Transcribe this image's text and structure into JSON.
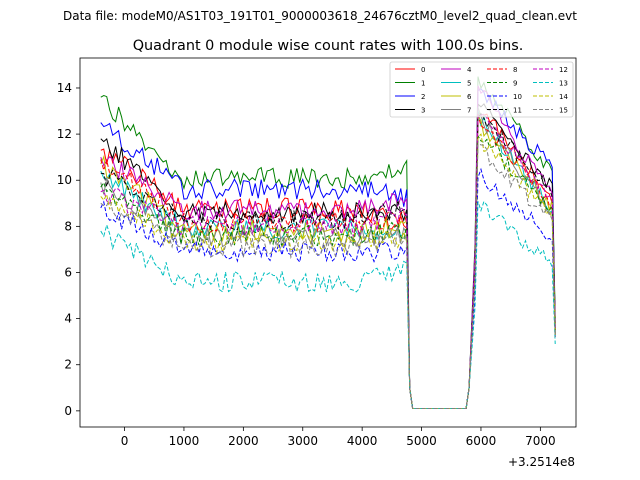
{
  "chart_data": {
    "type": "line",
    "suptitle": "Data file: modeM0/AS1T03_191T01_9000003618_24676cztM0_level2_quad_clean.evt",
    "title": "Quadrant 0 module wise count rates with 100.0s bins.",
    "xlabel": "",
    "ylabel": "",
    "offset_label": "+3.2514e8",
    "xlim": [
      -750,
      7600
    ],
    "ylim": [
      -0.7,
      15.3
    ],
    "xticks": [
      0,
      1000,
      2000,
      3000,
      4000,
      5000,
      6000,
      7000
    ],
    "yticks": [
      0,
      2,
      4,
      6,
      8,
      10,
      12,
      14
    ],
    "grid": false,
    "legend": {
      "placement": "top-right",
      "columns": 4
    },
    "gap": {
      "start": 4750,
      "end": 5900,
      "points": [
        [
          4800,
          1.0
        ],
        [
          4850,
          0.1
        ],
        [
          5750,
          0.1
        ],
        [
          5800,
          1.0
        ]
      ]
    },
    "recovery_x": [
      5900,
      5950,
      6000,
      6050,
      6100,
      6150,
      6200,
      6250,
      6300,
      6350,
      6400,
      6450,
      6500,
      6550,
      6600,
      6650,
      6700,
      6750,
      6800,
      6850,
      6900,
      6950,
      7000,
      7050,
      7100,
      7150,
      7200,
      7250
    ],
    "series": [
      {
        "name": "0",
        "color": "#ff0000",
        "style": "solid",
        "start": 11.3,
        "base": 8.8,
        "pre_end": 8.0,
        "peak": 13.2,
        "end": 9.2,
        "final": 3.5
      },
      {
        "name": "1",
        "color": "#008000",
        "style": "solid",
        "start": 13.6,
        "base": 10.1,
        "pre_end": 10.4,
        "peak": 14.5,
        "end": 10.3,
        "final": 4.0
      },
      {
        "name": "2",
        "color": "#0000ff",
        "style": "solid",
        "start": 12.5,
        "base": 9.6,
        "pre_end": 9.2,
        "peak": 13.9,
        "end": 10.6,
        "final": 3.2
      },
      {
        "name": "3",
        "color": "#000000",
        "style": "solid",
        "start": 11.8,
        "base": 8.6,
        "pre_end": 8.7,
        "peak": 13.3,
        "end": 9.6,
        "final": 3.8
      },
      {
        "name": "4",
        "color": "#bf00bf",
        "style": "solid",
        "start": 11.0,
        "base": 8.7,
        "pre_end": 9.2,
        "peak": 14.1,
        "end": 9.3,
        "final": 3.6
      },
      {
        "name": "5",
        "color": "#00bfbf",
        "style": "solid",
        "start": 10.4,
        "base": 7.9,
        "pre_end": 7.9,
        "peak": 12.8,
        "end": 8.7,
        "final": 3.4
      },
      {
        "name": "6",
        "color": "#bfbf00",
        "style": "solid",
        "start": 10.7,
        "base": 7.8,
        "pre_end": 8.1,
        "peak": 12.5,
        "end": 8.9,
        "final": 3.3
      },
      {
        "name": "7",
        "color": "#808080",
        "style": "solid",
        "start": 9.9,
        "base": 7.5,
        "pre_end": 7.6,
        "peak": 12.9,
        "end": 8.5,
        "final": 3.3
      },
      {
        "name": "8",
        "color": "#ff0000",
        "style": "dashed",
        "start": 10.9,
        "base": 8.2,
        "pre_end": 8.4,
        "peak": 12.6,
        "end": 9.0,
        "final": 3.5
      },
      {
        "name": "9",
        "color": "#008000",
        "style": "dashed",
        "start": 9.7,
        "base": 7.6,
        "pre_end": 7.8,
        "peak": 12.1,
        "end": 8.6,
        "final": 3.4
      },
      {
        "name": "10",
        "color": "#0000ff",
        "style": "dashed",
        "start": 8.8,
        "base": 6.9,
        "pre_end": 6.9,
        "peak": 10.3,
        "end": 7.5,
        "final": 3.2
      },
      {
        "name": "11",
        "color": "#000000",
        "style": "dashed",
        "start": 10.3,
        "base": 8.3,
        "pre_end": 8.9,
        "peak": 12.9,
        "end": 9.5,
        "final": 3.7
      },
      {
        "name": "12",
        "color": "#bf00bf",
        "style": "dashed",
        "start": 9.5,
        "base": 8.0,
        "pre_end": 8.6,
        "peak": 13.0,
        "end": 9.2,
        "final": 3.6
      },
      {
        "name": "13",
        "color": "#00bfbf",
        "style": "dashed",
        "start": 7.8,
        "base": 5.6,
        "pre_end": 6.1,
        "peak": 9.0,
        "end": 6.3,
        "final": 2.9
      },
      {
        "name": "14",
        "color": "#bfbf00",
        "style": "dashed",
        "start": 9.3,
        "base": 7.3,
        "pre_end": 7.4,
        "peak": 11.8,
        "end": 8.5,
        "final": 3.3
      },
      {
        "name": "15",
        "color": "#808080",
        "style": "dashed",
        "start": 9.0,
        "base": 7.1,
        "pre_end": 7.7,
        "peak": 11.5,
        "end": 8.2,
        "final": 3.2
      }
    ]
  }
}
